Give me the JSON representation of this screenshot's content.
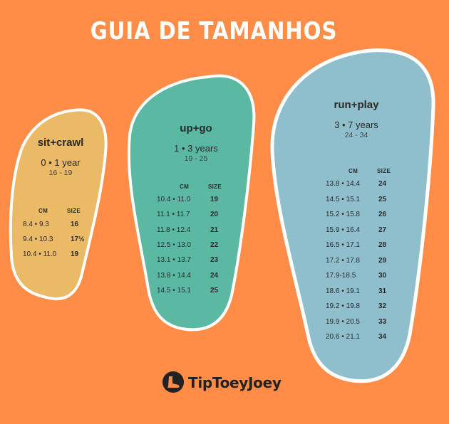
{
  "title": "GUIA DE TAMANHOS",
  "colors": {
    "background": "#ff8c47",
    "sit_crawl": "#eaba66",
    "up_go": "#5ab8a3",
    "run_play": "#8fbfcc",
    "outline": "#ffffff"
  },
  "panels": {
    "sit_crawl": {
      "name": "sit+crawl",
      "age": "0 • 1 year",
      "size_range": "16 - 19",
      "col_cm": "CM",
      "col_size": "SIZE",
      "rows": [
        {
          "cm": "8.4 • 9.3",
          "size": "16"
        },
        {
          "cm": "9.4 • 10.3",
          "size": "17½"
        },
        {
          "cm": "10.4 • 11.0",
          "size": "19"
        }
      ]
    },
    "up_go": {
      "name": "up+go",
      "age": "1 • 3 years",
      "size_range": "19 - 25",
      "col_cm": "CM",
      "col_size": "SIZE",
      "rows": [
        {
          "cm": "10.4 • 11.0",
          "size": "19"
        },
        {
          "cm": "11.1 • 11.7",
          "size": "20"
        },
        {
          "cm": "11.8 • 12.4",
          "size": "21"
        },
        {
          "cm": "12.5 • 13.0",
          "size": "22"
        },
        {
          "cm": "13.1 • 13.7",
          "size": "23"
        },
        {
          "cm": "13.8 • 14.4",
          "size": "24"
        },
        {
          "cm": "14.5 • 15.1",
          "size": "25"
        }
      ]
    },
    "run_play": {
      "name": "run+play",
      "age": "3 • 7 years",
      "size_range": "24 - 34",
      "col_cm": "CM",
      "col_size": "SIZE",
      "rows": [
        {
          "cm": "13.8 • 14.4",
          "size": "24"
        },
        {
          "cm": "14.5 • 15.1",
          "size": "25"
        },
        {
          "cm": "15.2 • 15.8",
          "size": "26"
        },
        {
          "cm": "15.9 • 16.4",
          "size": "27"
        },
        {
          "cm": "16.5 • 17.1",
          "size": "28"
        },
        {
          "cm": "17.2 • 17.8",
          "size": "29"
        },
        {
          "cm": "17.9-18.5",
          "size": "30"
        },
        {
          "cm": "18.6 • 19.1",
          "size": "31"
        },
        {
          "cm": "19.2 • 19.8",
          "size": "32"
        },
        {
          "cm": "19.9 • 20.5",
          "size": "33"
        },
        {
          "cm": "20.6 • 21.1",
          "size": "34"
        }
      ]
    }
  },
  "brand": {
    "name": "TipToeyJoey",
    "icon": "boot-logo-icon"
  }
}
